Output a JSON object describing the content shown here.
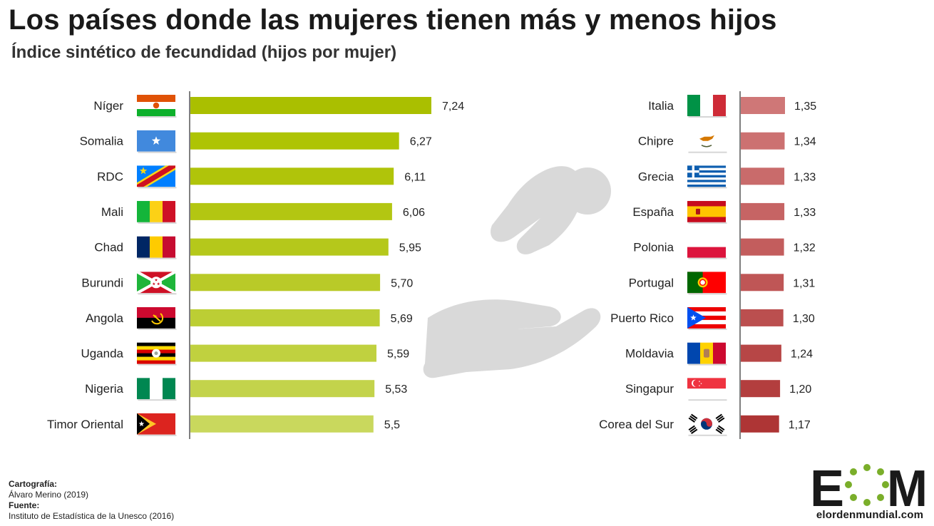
{
  "header": {
    "title": "Los países donde las mujeres tienen más y menos hijos",
    "subtitle": "Índice sintético de fecundidad (hijos por mujer)"
  },
  "chart_data": [
    {
      "type": "bar",
      "orientation": "horizontal",
      "group": "highest",
      "categories": [
        "Níger",
        "Somalia",
        "RDC",
        "Mali",
        "Chad",
        "Burundi",
        "Angola",
        "Uganda",
        "Nigeria",
        "Timor Oriental"
      ],
      "values": [
        7.24,
        6.27,
        6.11,
        6.06,
        5.95,
        5.7,
        5.69,
        5.59,
        5.53,
        5.5
      ],
      "labels": [
        "7,24",
        "6,27",
        "6,11",
        "6,06",
        "5,95",
        "5,70",
        "5,69",
        "5,59",
        "5,53",
        "5,5"
      ],
      "flags": [
        "niger-flag",
        "somalia-flag",
        "drc-flag",
        "mali-flag",
        "chad-flag",
        "burundi-flag",
        "angola-flag",
        "uganda-flag",
        "nigeria-flag",
        "timor-leste-flag"
      ],
      "colors": [
        "#aabf00",
        "#aec404",
        "#b0c40a",
        "#b3c612",
        "#b5c81b",
        "#b9ca28",
        "#bcce34",
        "#c0d13f",
        "#c3d34b",
        "#c9d85d"
      ]
    },
    {
      "type": "bar",
      "orientation": "horizontal",
      "group": "lowest",
      "categories": [
        "Italia",
        "Chipre",
        "Grecia",
        "España",
        "Polonia",
        "Portugal",
        "Puerto Rico",
        "Moldavia",
        "Singapur",
        "Corea del Sur"
      ],
      "values": [
        1.35,
        1.34,
        1.33,
        1.33,
        1.32,
        1.31,
        1.3,
        1.24,
        1.2,
        1.17
      ],
      "labels": [
        "1,35",
        "1,34",
        "1,33",
        "1,33",
        "1,32",
        "1,31",
        "1,30",
        "1,24",
        "1,20",
        "1,17"
      ],
      "flags": [
        "italy-flag",
        "cyprus-flag",
        "greece-flag",
        "spain-flag",
        "poland-flag",
        "portugal-flag",
        "puerto-rico-flag",
        "moldova-flag",
        "singapore-flag",
        "south-korea-flag"
      ],
      "colors": [
        "#cf7777",
        "#cc7171",
        "#c96b6b",
        "#c66464",
        "#c35d5d",
        "#bf5656",
        "#bb4f4f",
        "#b74646",
        "#b33e3e",
        "#ae3535"
      ]
    }
  ],
  "credits": {
    "cartography_label": "Cartografía:",
    "cartography_value": "Álvaro Merino (2019)",
    "source_label": "Fuente:",
    "source_value": "Instituto de Estadística de la Unesco (2016)"
  },
  "logo": {
    "letters": "EOM",
    "site": "elordenmundial.com"
  }
}
